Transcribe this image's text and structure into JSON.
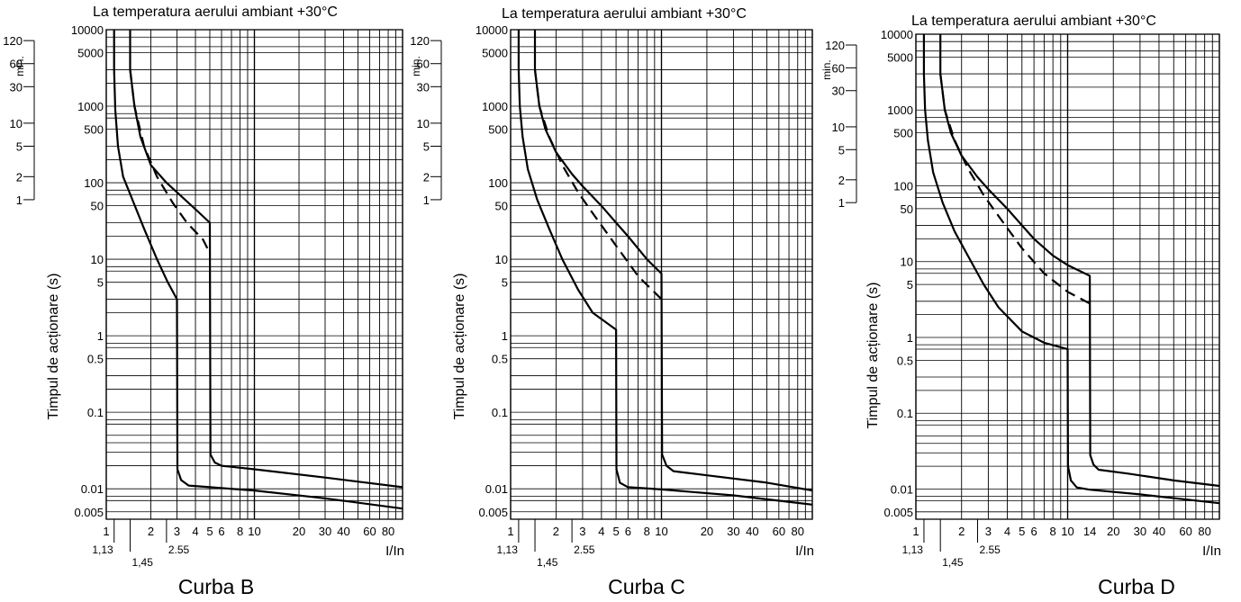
{
  "chart_data": [
    {
      "type": "line",
      "title": "La temperatura aerului ambiant +30°C",
      "caption": "Curba B",
      "ylabel": "Timpul de acționare (s)",
      "xlabel": "I/In",
      "min_label": "min.",
      "x_scale": "log",
      "y_scale": "log",
      "xlim": [
        1,
        100
      ],
      "ylim": [
        0.004,
        10000
      ],
      "grid": true,
      "x_ticks": [
        "1",
        "2",
        "3",
        "4",
        "5",
        "6",
        "8",
        "10",
        "20",
        "30",
        "40",
        "60",
        "80"
      ],
      "x_extra_ticks": [
        "1,13",
        "1,45",
        "2.55"
      ],
      "y_ticks": [
        "10000",
        "5000",
        "1000",
        "500",
        "100",
        "50",
        "10",
        "5",
        "1",
        "0.5",
        "0.1",
        "0.01",
        "0.005"
      ],
      "min_ticks": [
        "120",
        "60",
        "30",
        "10",
        "5",
        "2",
        "1"
      ],
      "series": [
        {
          "style": "solid",
          "x": [
            1.13,
            1.13,
            1.15,
            1.2,
            1.3,
            1.5,
            1.8,
            2.2,
            2.6,
            3,
            3,
            3.02,
            3.2,
            3.6,
            5,
            10,
            30,
            100
          ],
          "y": [
            10000,
            3000,
            900,
            300,
            120,
            60,
            25,
            10,
            5,
            3,
            3,
            0.018,
            0.013,
            0.011,
            0.0105,
            0.0095,
            0.0075,
            0.0055
          ]
        },
        {
          "style": "solid",
          "x": [
            1.45,
            1.45,
            1.55,
            1.7,
            2,
            2.55,
            3,
            4,
            5,
            5,
            5.05,
            5.4,
            6,
            10,
            30,
            100
          ],
          "y": [
            10000,
            3000,
            1000,
            400,
            170,
            100,
            75,
            45,
            30,
            30,
            0.028,
            0.022,
            0.02,
            0.018,
            0.014,
            0.0105
          ]
        },
        {
          "style": "dashed",
          "x": [
            1.45,
            1.55,
            1.8,
            2.2,
            2.8,
            3.5,
            4.5,
            5
          ],
          "y": [
            3000,
            1000,
            300,
            120,
            55,
            30,
            18,
            12
          ]
        }
      ]
    },
    {
      "type": "line",
      "title": "La temperatura aerului ambiant +30°C",
      "caption": "Curba C",
      "ylabel": "Timpul de acționare (s)",
      "xlabel": "I/In",
      "min_label": "min.",
      "x_scale": "log",
      "y_scale": "log",
      "xlim": [
        1,
        100
      ],
      "ylim": [
        0.004,
        10000
      ],
      "grid": true,
      "x_ticks": [
        "1",
        "2",
        "3",
        "4",
        "5",
        "6",
        "8",
        "10",
        "20",
        "30",
        "40",
        "60",
        "80"
      ],
      "x_extra_ticks": [
        "1,13",
        "1,45",
        "2.55"
      ],
      "y_ticks": [
        "10000",
        "5000",
        "1000",
        "500",
        "100",
        "50",
        "10",
        "5",
        "1",
        "0.5",
        "0.1",
        "0.01",
        "0.005"
      ],
      "min_ticks": [
        "120",
        "60",
        "30",
        "10",
        "5",
        "2",
        "1"
      ],
      "series": [
        {
          "style": "solid",
          "x": [
            1.13,
            1.13,
            1.15,
            1.2,
            1.3,
            1.5,
            1.8,
            2.2,
            2.8,
            3.5,
            5,
            5,
            5.03,
            5.3,
            6,
            10,
            30,
            100
          ],
          "y": [
            10000,
            3000,
            1000,
            400,
            150,
            60,
            25,
            10,
            4,
            2,
            1.2,
            1.2,
            0.018,
            0.012,
            0.0105,
            0.0098,
            0.0082,
            0.0062
          ]
        },
        {
          "style": "solid",
          "x": [
            1.45,
            1.45,
            1.55,
            1.7,
            2,
            2.55,
            3,
            4,
            5,
            6,
            8,
            10,
            10,
            10.1,
            10.8,
            12,
            20,
            50,
            100
          ],
          "y": [
            10000,
            3000,
            1000,
            500,
            250,
            130,
            90,
            50,
            30,
            20,
            10,
            6.5,
            6.5,
            0.028,
            0.02,
            0.017,
            0.015,
            0.012,
            0.0095
          ]
        },
        {
          "style": "dashed",
          "x": [
            1.45,
            1.55,
            1.8,
            2.2,
            2.8,
            3.5,
            5,
            7,
            10
          ],
          "y": [
            3000,
            1000,
            400,
            170,
            75,
            40,
            15,
            6,
            3
          ]
        }
      ]
    },
    {
      "type": "line",
      "title": "La temperatura aerului ambiant +30°C",
      "caption": "Curba D",
      "ylabel": "Timpul de acționare (s)",
      "xlabel": "I/In",
      "min_label": "min.",
      "x_scale": "log",
      "y_scale": "log",
      "xlim": [
        1,
        100
      ],
      "ylim": [
        0.004,
        10000
      ],
      "grid": true,
      "x_ticks": [
        "1",
        "2",
        "3",
        "4",
        "5",
        "6",
        "8",
        "10",
        "14",
        "20",
        "30",
        "40",
        "60",
        "80"
      ],
      "x_extra_ticks": [
        "1,13",
        "1,45",
        "2.55"
      ],
      "y_ticks": [
        "10000",
        "5000",
        "1000",
        "500",
        "100",
        "50",
        "10",
        "5",
        "1",
        "0.5",
        "0.1",
        "0.01",
        "0.005"
      ],
      "min_ticks": [
        "120",
        "60",
        "30",
        "10",
        "5",
        "2",
        "1"
      ],
      "series": [
        {
          "style": "solid",
          "x": [
            1.13,
            1.13,
            1.15,
            1.2,
            1.3,
            1.5,
            1.8,
            2.2,
            2.8,
            3.5,
            5,
            7,
            10,
            10,
            10.05,
            10.5,
            11.5,
            14,
            30,
            100
          ],
          "y": [
            10000,
            3000,
            1000,
            400,
            150,
            60,
            25,
            12,
            5,
            2.5,
            1.2,
            0.85,
            0.7,
            0.7,
            0.02,
            0.013,
            0.0105,
            0.0098,
            0.0085,
            0.0065
          ]
        },
        {
          "style": "solid",
          "x": [
            1.45,
            1.45,
            1.55,
            1.7,
            2,
            2.55,
            3,
            4,
            5,
            6,
            8,
            10,
            14,
            14,
            14.1,
            14.8,
            16,
            25,
            50,
            100
          ],
          "y": [
            10000,
            3000,
            1000,
            500,
            250,
            130,
            90,
            50,
            30,
            20,
            12,
            9,
            6.5,
            6.5,
            0.028,
            0.021,
            0.018,
            0.016,
            0.013,
            0.011
          ]
        },
        {
          "style": "dashed",
          "x": [
            1.45,
            1.55,
            1.8,
            2.2,
            2.8,
            3.5,
            5,
            7,
            10,
            14
          ],
          "y": [
            3000,
            1000,
            400,
            170,
            75,
            40,
            15,
            7,
            4,
            2.8
          ]
        }
      ]
    }
  ]
}
